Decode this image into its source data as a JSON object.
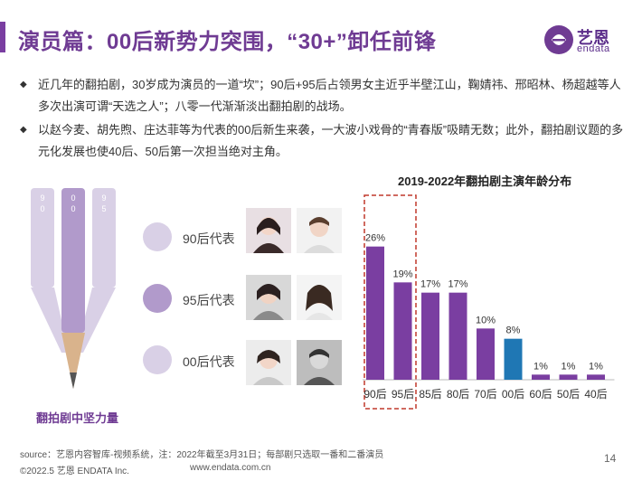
{
  "header": {
    "title": "演员篇：00后新势力突围，“30+”卸任前锋",
    "logo_text": "艺恩",
    "logo_sub": "endata"
  },
  "bullets": [
    {
      "text": "近几年的翻拍剧，30岁成为演员的一道“坎”；90后+95后占领男女主近乎半壁江山，鞠婧祎、邢昭林、杨超越等人多次出演可谓“天选之人”；八零一代渐渐淡出翻拍剧的战场。"
    },
    {
      "text": "以赵今麦、胡先煦、庄达菲等为代表的00后新生来袭，一大波小戏骨的“青春版”吸睛无数；此外，翻拍剧议题的多元化发展也使40后、50后第一次担当绝对主角。"
    }
  ],
  "pencil_graphic": {
    "labels": [
      "90",
      "00",
      "95"
    ],
    "caption": "翻拍剧中坚力量"
  },
  "tiers": [
    {
      "label": "90后代表",
      "color": "#d9d0e6"
    },
    {
      "label": "95后代表",
      "color": "#b19acb"
    },
    {
      "label": "00后代表",
      "color": "#d9d0e6"
    }
  ],
  "chart_data": {
    "type": "bar",
    "title": "2019-2022年翻拍剧主演年龄分布",
    "categories": [
      "90后",
      "95后",
      "85后",
      "80后",
      "70后",
      "00后",
      "60后",
      "50后",
      "40后"
    ],
    "values": [
      26,
      19,
      17,
      17,
      10,
      8,
      1,
      1,
      1
    ],
    "value_labels": [
      "26%",
      "19%",
      "17%",
      "17%",
      "10%",
      "8%",
      "1%",
      "1%",
      "1%"
    ],
    "colors": [
      "#7a3ea1",
      "#7a3ea1",
      "#7a3ea1",
      "#7a3ea1",
      "#7a3ea1",
      "#1f77b4",
      "#7a3ea1",
      "#7a3ea1",
      "#7a3ea1"
    ],
    "ylim": [
      0,
      30
    ],
    "highlight_categories": [
      "90后",
      "95后"
    ],
    "highlight_color": "#c0392b",
    "grid": false,
    "legend": "none"
  },
  "footer": {
    "source": "source：艺恩内容智库-视频系统，注：2022年截至3月31日；每部剧只选取一番和二番演员",
    "copyright": "©2022.5 艺恩 ENDATA Inc.",
    "website": "www.endata.com.cn",
    "page_number": "14"
  }
}
